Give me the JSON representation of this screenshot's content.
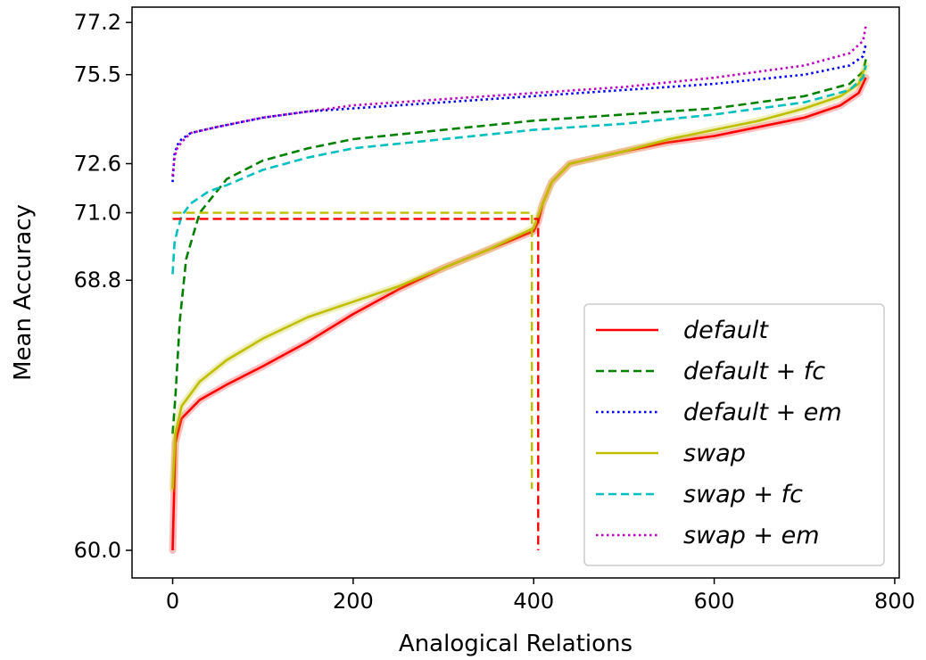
{
  "chart_data": {
    "type": "line",
    "title": "",
    "xlabel": "Analogical Relations",
    "ylabel": "Mean Accuracy",
    "xlim": [
      -45,
      805
    ],
    "ylim": [
      59.1,
      77.7
    ],
    "x_ticks": [
      0,
      200,
      400,
      600,
      800
    ],
    "x_tick_labels": [
      "0",
      "200",
      "400",
      "600",
      "800"
    ],
    "y_ticks": [
      60.0,
      68.8,
      71.0,
      72.6,
      75.5,
      77.2
    ],
    "y_tick_labels": [
      "60.0",
      "68.8",
      "71.0",
      "72.6",
      "75.5",
      "77.2"
    ],
    "grid": false,
    "legend_position": "lower-right",
    "series": [
      {
        "name": "default",
        "color": "#ff0000",
        "dash": "solid",
        "band": true,
        "x": [
          0,
          3,
          10,
          30,
          60,
          100,
          150,
          200,
          250,
          300,
          350,
          400,
          405,
          410,
          420,
          440,
          470,
          500,
          550,
          600,
          650,
          700,
          740,
          760,
          768
        ],
        "y": [
          60.0,
          63.5,
          64.3,
          64.9,
          65.4,
          66.0,
          66.8,
          67.7,
          68.5,
          69.2,
          69.8,
          70.4,
          70.7,
          71.3,
          72.0,
          72.6,
          72.8,
          73.0,
          73.3,
          73.5,
          73.8,
          74.1,
          74.5,
          74.9,
          75.4
        ]
      },
      {
        "name": "default + fc",
        "color": "#008000",
        "dash": "dashed",
        "x": [
          0,
          3,
          8,
          15,
          30,
          60,
          100,
          150,
          200,
          300,
          400,
          500,
          600,
          700,
          750,
          765,
          768
        ],
        "y": [
          63.8,
          65.0,
          67.5,
          69.5,
          71.0,
          72.1,
          72.7,
          73.1,
          73.4,
          73.7,
          74.0,
          74.2,
          74.4,
          74.8,
          75.2,
          75.6,
          76.0
        ]
      },
      {
        "name": "default + em",
        "color": "#0000ff",
        "dash": "dotted",
        "x": [
          0,
          2,
          5,
          10,
          20,
          50,
          100,
          150,
          200,
          300,
          400,
          500,
          600,
          700,
          750,
          765,
          768
        ],
        "y": [
          72.0,
          72.9,
          73.2,
          73.4,
          73.6,
          73.8,
          74.1,
          74.3,
          74.4,
          74.6,
          74.8,
          75.0,
          75.2,
          75.5,
          75.8,
          76.1,
          76.5
        ]
      },
      {
        "name": "swap",
        "color": "#bfbf00",
        "dash": "solid",
        "band": true,
        "x": [
          0,
          3,
          10,
          30,
          60,
          100,
          150,
          200,
          250,
          300,
          350,
          400,
          405,
          410,
          420,
          440,
          470,
          500,
          550,
          600,
          650,
          700,
          740,
          760,
          768
        ],
        "y": [
          62.0,
          63.8,
          64.7,
          65.5,
          66.2,
          66.9,
          67.6,
          68.1,
          68.6,
          69.2,
          69.8,
          70.5,
          70.9,
          71.3,
          72.0,
          72.6,
          72.8,
          73.0,
          73.4,
          73.7,
          74.0,
          74.4,
          74.8,
          75.2,
          75.8
        ]
      },
      {
        "name": "swap + fc",
        "color": "#00bfbf",
        "dash": "dashed",
        "x": [
          0,
          2,
          5,
          10,
          20,
          40,
          60,
          100,
          150,
          200,
          300,
          400,
          500,
          600,
          700,
          750,
          765,
          768
        ],
        "y": [
          69.0,
          70.0,
          70.4,
          70.9,
          71.3,
          71.7,
          71.9,
          72.4,
          72.8,
          73.1,
          73.4,
          73.7,
          73.9,
          74.2,
          74.6,
          75.0,
          75.4,
          75.8
        ]
      },
      {
        "name": "swap + em",
        "color": "#bf00bf",
        "dash": "dotted",
        "x": [
          0,
          2,
          5,
          10,
          20,
          50,
          100,
          150,
          200,
          300,
          400,
          500,
          600,
          700,
          750,
          765,
          768
        ],
        "y": [
          72.2,
          72.8,
          73.1,
          73.3,
          73.6,
          73.8,
          74.1,
          74.3,
          74.5,
          74.7,
          74.9,
          75.1,
          75.4,
          75.8,
          76.2,
          76.6,
          77.1
        ]
      }
    ],
    "reference_lines": [
      {
        "color": "#ff0000",
        "y": 70.8,
        "x_end": 405
      },
      {
        "color": "#bfbf00",
        "y": 71.0,
        "x_end": 398
      }
    ]
  }
}
